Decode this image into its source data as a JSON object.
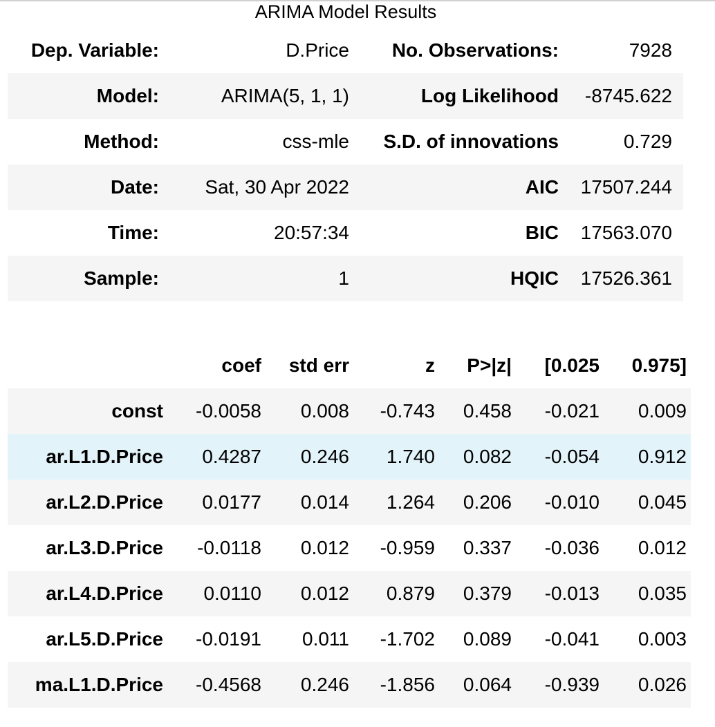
{
  "title": "ARIMA Model Results",
  "summary": {
    "rows": [
      {
        "k1": "Dep. Variable:",
        "v1": "D.Price",
        "k2": "No. Observations:",
        "v2": "7928"
      },
      {
        "k1": "Model:",
        "v1": "ARIMA(5, 1, 1)",
        "k2": "Log Likelihood",
        "v2": "-8745.622"
      },
      {
        "k1": "Method:",
        "v1": "css-mle",
        "k2": "S.D. of innovations",
        "v2": "0.729"
      },
      {
        "k1": "Date:",
        "v1": "Sat, 30 Apr 2022",
        "k2": "AIC",
        "v2": "17507.244"
      },
      {
        "k1": "Time:",
        "v1": "20:57:34",
        "k2": "BIC",
        "v2": "17563.070"
      },
      {
        "k1": "Sample:",
        "v1": "1",
        "k2": "HQIC",
        "v2": "17526.361"
      }
    ]
  },
  "coef": {
    "headers": [
      "",
      "coef",
      "std err",
      "z",
      "P>|z|",
      "[0.025",
      "0.975]"
    ],
    "rows": [
      {
        "name": "const",
        "values": [
          "-0.0058",
          "0.008",
          "-0.743",
          "0.458",
          "-0.021",
          "0.009"
        ]
      },
      {
        "name": "ar.L1.D.Price",
        "values": [
          "0.4287",
          "0.246",
          "1.740",
          "0.082",
          "-0.054",
          "0.912"
        ]
      },
      {
        "name": "ar.L2.D.Price",
        "values": [
          "0.0177",
          "0.014",
          "1.264",
          "0.206",
          "-0.010",
          "0.045"
        ]
      },
      {
        "name": "ar.L3.D.Price",
        "values": [
          "-0.0118",
          "0.012",
          "-0.959",
          "0.337",
          "-0.036",
          "0.012"
        ]
      },
      {
        "name": "ar.L4.D.Price",
        "values": [
          "0.0110",
          "0.012",
          "0.879",
          "0.379",
          "-0.013",
          "0.035"
        ]
      },
      {
        "name": "ar.L5.D.Price",
        "values": [
          "-0.0191",
          "0.011",
          "-1.702",
          "0.089",
          "-0.041",
          "0.003"
        ]
      },
      {
        "name": "ma.L1.D.Price",
        "values": [
          "-0.4568",
          "0.246",
          "-1.856",
          "0.064",
          "-0.939",
          "0.026"
        ]
      }
    ],
    "highlighted_row": "ar.L1.D.Price"
  },
  "colors": {
    "stripe": "#f5f5f5",
    "hover_highlight": "#e3f3fa"
  }
}
